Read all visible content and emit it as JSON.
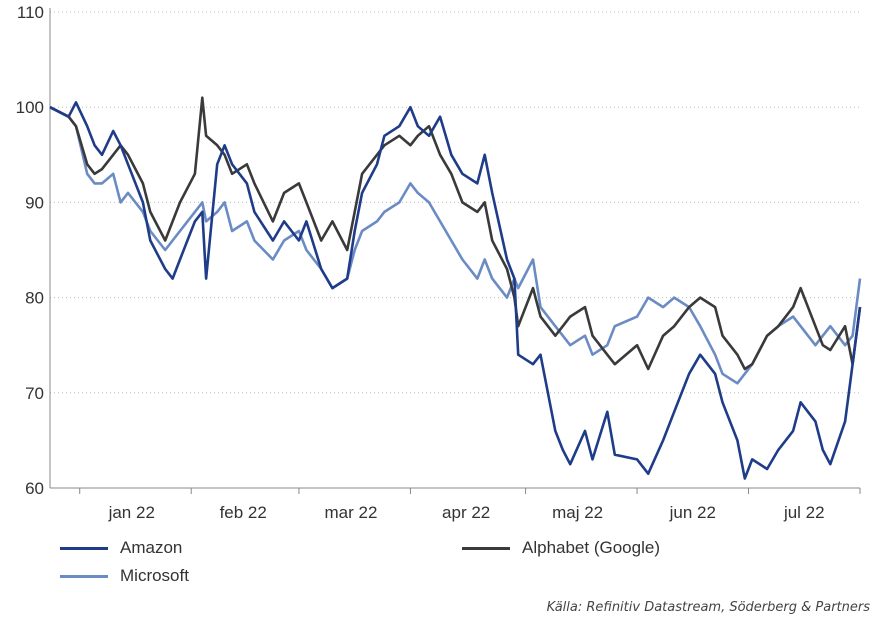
{
  "chart_data": {
    "type": "line",
    "title": "",
    "xlabel": "",
    "ylabel": "",
    "ylim": [
      60,
      110
    ],
    "yticks": [
      60,
      70,
      80,
      90,
      100,
      110
    ],
    "grid": "horizontal-dotted",
    "legend_position": "bottom",
    "x_start": "2021-12-24",
    "x_end": "2022-07-30",
    "month_labels": [
      {
        "label": "jan 22",
        "date": "2022-01-15"
      },
      {
        "label": "feb 22",
        "date": "2022-02-14"
      },
      {
        "label": "mar 22",
        "date": "2022-03-15"
      },
      {
        "label": "apr 22",
        "date": "2022-04-15"
      },
      {
        "label": "maj 22",
        "date": "2022-05-15"
      },
      {
        "label": "jun 22",
        "date": "2022-06-15"
      },
      {
        "label": "jul 22",
        "date": "2022-07-15"
      }
    ],
    "month_separators": [
      "2022-01-01",
      "2022-01-31",
      "2022-03-01",
      "2022-03-31",
      "2022-05-01",
      "2022-05-31",
      "2022-06-30",
      "2022-07-30"
    ],
    "series": [
      {
        "name": "Amazon",
        "color": "#1f3c88",
        "points": [
          [
            "2021-12-24",
            100
          ],
          [
            "2021-12-29",
            99
          ],
          [
            "2021-12-31",
            100.5
          ],
          [
            "2022-01-03",
            98
          ],
          [
            "2022-01-05",
            96
          ],
          [
            "2022-01-07",
            95
          ],
          [
            "2022-01-10",
            97.5
          ],
          [
            "2022-01-12",
            96
          ],
          [
            "2022-01-14",
            94
          ],
          [
            "2022-01-18",
            90
          ],
          [
            "2022-01-20",
            86
          ],
          [
            "2022-01-24",
            83
          ],
          [
            "2022-01-26",
            82
          ],
          [
            "2022-01-28",
            84
          ],
          [
            "2022-02-01",
            88
          ],
          [
            "2022-02-03",
            89
          ],
          [
            "2022-02-04",
            82
          ],
          [
            "2022-02-07",
            94
          ],
          [
            "2022-02-09",
            96
          ],
          [
            "2022-02-11",
            94
          ],
          [
            "2022-02-15",
            92
          ],
          [
            "2022-02-17",
            89
          ],
          [
            "2022-02-22",
            86
          ],
          [
            "2022-02-25",
            88
          ],
          [
            "2022-03-01",
            86
          ],
          [
            "2022-03-03",
            88
          ],
          [
            "2022-03-07",
            83
          ],
          [
            "2022-03-10",
            81
          ],
          [
            "2022-03-14",
            82
          ],
          [
            "2022-03-16",
            87
          ],
          [
            "2022-03-18",
            91
          ],
          [
            "2022-03-22",
            94
          ],
          [
            "2022-03-24",
            97
          ],
          [
            "2022-03-28",
            98
          ],
          [
            "2022-03-31",
            100
          ],
          [
            "2022-04-02",
            98
          ],
          [
            "2022-04-05",
            97
          ],
          [
            "2022-04-08",
            99
          ],
          [
            "2022-04-11",
            95
          ],
          [
            "2022-04-14",
            93
          ],
          [
            "2022-04-18",
            92
          ],
          [
            "2022-04-20",
            95
          ],
          [
            "2022-04-22",
            91
          ],
          [
            "2022-04-26",
            84
          ],
          [
            "2022-04-28",
            82
          ],
          [
            "2022-04-29",
            74
          ],
          [
            "2022-05-03",
            73
          ],
          [
            "2022-05-05",
            74
          ],
          [
            "2022-05-09",
            66
          ],
          [
            "2022-05-11",
            64
          ],
          [
            "2022-05-13",
            62.5
          ],
          [
            "2022-05-17",
            66
          ],
          [
            "2022-05-19",
            63
          ],
          [
            "2022-05-23",
            68
          ],
          [
            "2022-05-25",
            63.5
          ],
          [
            "2022-05-31",
            63
          ],
          [
            "2022-06-03",
            61.5
          ],
          [
            "2022-06-07",
            65
          ],
          [
            "2022-06-10",
            68
          ],
          [
            "2022-06-14",
            72
          ],
          [
            "2022-06-17",
            74
          ],
          [
            "2022-06-21",
            72
          ],
          [
            "2022-06-23",
            69
          ],
          [
            "2022-06-27",
            65
          ],
          [
            "2022-06-29",
            61
          ],
          [
            "2022-07-01",
            63
          ],
          [
            "2022-07-05",
            62
          ],
          [
            "2022-07-08",
            64
          ],
          [
            "2022-07-12",
            66
          ],
          [
            "2022-07-14",
            69
          ],
          [
            "2022-07-18",
            67
          ],
          [
            "2022-07-20",
            64
          ],
          [
            "2022-07-22",
            62.5
          ],
          [
            "2022-07-26",
            67
          ],
          [
            "2022-07-28",
            73
          ],
          [
            "2022-07-30",
            79
          ]
        ]
      },
      {
        "name": "Alphabet (Google)",
        "color": "#3a3a3a",
        "points": [
          [
            "2021-12-24",
            100
          ],
          [
            "2021-12-29",
            99
          ],
          [
            "2021-12-31",
            98
          ],
          [
            "2022-01-03",
            94
          ],
          [
            "2022-01-05",
            93
          ],
          [
            "2022-01-07",
            93.5
          ],
          [
            "2022-01-10",
            95
          ],
          [
            "2022-01-12",
            96
          ],
          [
            "2022-01-14",
            95
          ],
          [
            "2022-01-18",
            92
          ],
          [
            "2022-01-20",
            89
          ],
          [
            "2022-01-24",
            86
          ],
          [
            "2022-01-26",
            88
          ],
          [
            "2022-01-28",
            90
          ],
          [
            "2022-02-01",
            93
          ],
          [
            "2022-02-03",
            101
          ],
          [
            "2022-02-04",
            97
          ],
          [
            "2022-02-07",
            96
          ],
          [
            "2022-02-09",
            95
          ],
          [
            "2022-02-11",
            93
          ],
          [
            "2022-02-15",
            94
          ],
          [
            "2022-02-17",
            92
          ],
          [
            "2022-02-22",
            88
          ],
          [
            "2022-02-25",
            91
          ],
          [
            "2022-03-01",
            92
          ],
          [
            "2022-03-03",
            90
          ],
          [
            "2022-03-07",
            86
          ],
          [
            "2022-03-10",
            88
          ],
          [
            "2022-03-14",
            85
          ],
          [
            "2022-03-16",
            89
          ],
          [
            "2022-03-18",
            93
          ],
          [
            "2022-03-22",
            95
          ],
          [
            "2022-03-24",
            96
          ],
          [
            "2022-03-28",
            97
          ],
          [
            "2022-03-31",
            96
          ],
          [
            "2022-04-02",
            97
          ],
          [
            "2022-04-05",
            98
          ],
          [
            "2022-04-08",
            95
          ],
          [
            "2022-04-11",
            93
          ],
          [
            "2022-04-14",
            90
          ],
          [
            "2022-04-18",
            89
          ],
          [
            "2022-04-20",
            90
          ],
          [
            "2022-04-22",
            86
          ],
          [
            "2022-04-26",
            83
          ],
          [
            "2022-04-28",
            80
          ],
          [
            "2022-04-29",
            77
          ],
          [
            "2022-05-03",
            81
          ],
          [
            "2022-05-05",
            78
          ],
          [
            "2022-05-09",
            76
          ],
          [
            "2022-05-11",
            77
          ],
          [
            "2022-05-13",
            78
          ],
          [
            "2022-05-17",
            79
          ],
          [
            "2022-05-19",
            76
          ],
          [
            "2022-05-23",
            74
          ],
          [
            "2022-05-25",
            73
          ],
          [
            "2022-05-31",
            75
          ],
          [
            "2022-06-03",
            72.5
          ],
          [
            "2022-06-07",
            76
          ],
          [
            "2022-06-10",
            77
          ],
          [
            "2022-06-14",
            79
          ],
          [
            "2022-06-17",
            80
          ],
          [
            "2022-06-21",
            79
          ],
          [
            "2022-06-23",
            76
          ],
          [
            "2022-06-27",
            74
          ],
          [
            "2022-06-29",
            72.5
          ],
          [
            "2022-07-01",
            73
          ],
          [
            "2022-07-05",
            76
          ],
          [
            "2022-07-08",
            77
          ],
          [
            "2022-07-12",
            79
          ],
          [
            "2022-07-14",
            81
          ],
          [
            "2022-07-18",
            77
          ],
          [
            "2022-07-20",
            75
          ],
          [
            "2022-07-22",
            74.5
          ],
          [
            "2022-07-26",
            77
          ],
          [
            "2022-07-28",
            73
          ],
          [
            "2022-07-30",
            79
          ]
        ]
      },
      {
        "name": "Microsoft",
        "color": "#6b8bc4",
        "points": [
          [
            "2021-12-24",
            100
          ],
          [
            "2021-12-29",
            99
          ],
          [
            "2021-12-31",
            98
          ],
          [
            "2022-01-03",
            93
          ],
          [
            "2022-01-05",
            92
          ],
          [
            "2022-01-07",
            92
          ],
          [
            "2022-01-10",
            93
          ],
          [
            "2022-01-12",
            90
          ],
          [
            "2022-01-14",
            91
          ],
          [
            "2022-01-18",
            89
          ],
          [
            "2022-01-20",
            87
          ],
          [
            "2022-01-24",
            85
          ],
          [
            "2022-01-26",
            86
          ],
          [
            "2022-01-28",
            87
          ],
          [
            "2022-02-01",
            89
          ],
          [
            "2022-02-03",
            90
          ],
          [
            "2022-02-04",
            88
          ],
          [
            "2022-02-07",
            89
          ],
          [
            "2022-02-09",
            90
          ],
          [
            "2022-02-11",
            87
          ],
          [
            "2022-02-15",
            88
          ],
          [
            "2022-02-17",
            86
          ],
          [
            "2022-02-22",
            84
          ],
          [
            "2022-02-25",
            86
          ],
          [
            "2022-03-01",
            87
          ],
          [
            "2022-03-03",
            85
          ],
          [
            "2022-03-07",
            83
          ],
          [
            "2022-03-10",
            81
          ],
          [
            "2022-03-14",
            82
          ],
          [
            "2022-03-16",
            85
          ],
          [
            "2022-03-18",
            87
          ],
          [
            "2022-03-22",
            88
          ],
          [
            "2022-03-24",
            89
          ],
          [
            "2022-03-28",
            90
          ],
          [
            "2022-03-31",
            92
          ],
          [
            "2022-04-02",
            91
          ],
          [
            "2022-04-05",
            90
          ],
          [
            "2022-04-08",
            88
          ],
          [
            "2022-04-11",
            86
          ],
          [
            "2022-04-14",
            84
          ],
          [
            "2022-04-18",
            82
          ],
          [
            "2022-04-20",
            84
          ],
          [
            "2022-04-22",
            82
          ],
          [
            "2022-04-26",
            80
          ],
          [
            "2022-04-28",
            82
          ],
          [
            "2022-04-29",
            81
          ],
          [
            "2022-05-03",
            84
          ],
          [
            "2022-05-05",
            79
          ],
          [
            "2022-05-09",
            77
          ],
          [
            "2022-05-11",
            76
          ],
          [
            "2022-05-13",
            75
          ],
          [
            "2022-05-17",
            76
          ],
          [
            "2022-05-19",
            74
          ],
          [
            "2022-05-23",
            75
          ],
          [
            "2022-05-25",
            77
          ],
          [
            "2022-05-31",
            78
          ],
          [
            "2022-06-03",
            80
          ],
          [
            "2022-06-07",
            79
          ],
          [
            "2022-06-10",
            80
          ],
          [
            "2022-06-14",
            79
          ],
          [
            "2022-06-17",
            77
          ],
          [
            "2022-06-21",
            74
          ],
          [
            "2022-06-23",
            72
          ],
          [
            "2022-06-27",
            71
          ],
          [
            "2022-06-29",
            72
          ],
          [
            "2022-07-01",
            73
          ],
          [
            "2022-07-05",
            76
          ],
          [
            "2022-07-08",
            77
          ],
          [
            "2022-07-12",
            78
          ],
          [
            "2022-07-14",
            77
          ],
          [
            "2022-07-18",
            75
          ],
          [
            "2022-07-20",
            76
          ],
          [
            "2022-07-22",
            77
          ],
          [
            "2022-07-26",
            75
          ],
          [
            "2022-07-28",
            76
          ],
          [
            "2022-07-30",
            82
          ]
        ]
      }
    ]
  },
  "legend": {
    "amazon": "Amazon",
    "alphabet": "Alphabet (Google)",
    "microsoft": "Microsoft"
  },
  "source": "Källa: Refinitiv Datastream, Söderberg & Partners"
}
